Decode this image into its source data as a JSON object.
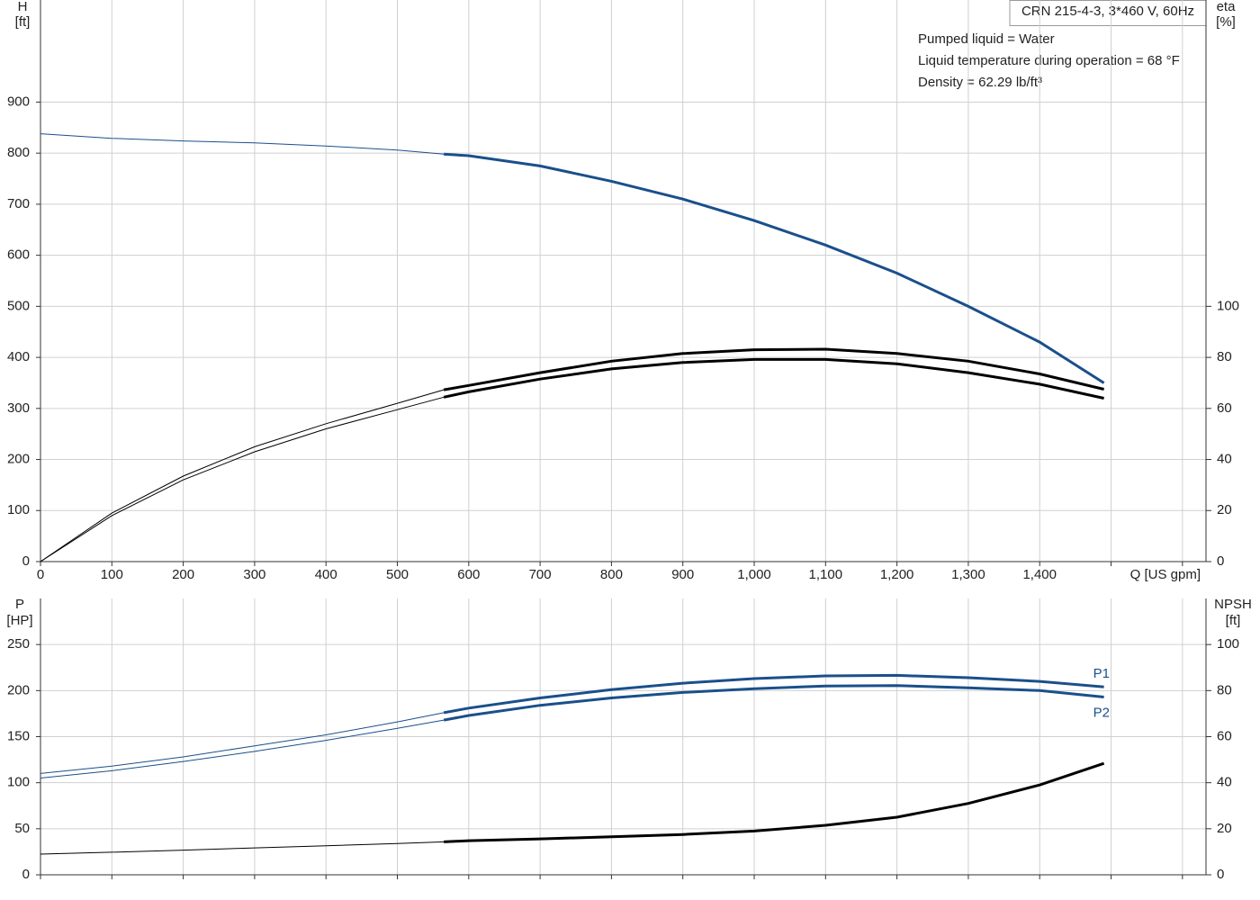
{
  "chart_data": [
    {
      "type": "line",
      "box_title": "CRN 215-4-3, 3*460 V, 60Hz",
      "annotations": [
        "Pumped liquid = Water",
        "Liquid temperature during operation = 68 °F",
        "Density = 62.29 lb/ft³"
      ],
      "y_label": [
        "H",
        "[ft]"
      ],
      "y2_label": [
        "eta",
        "[%]"
      ],
      "x_label": "Q [US gpm]",
      "xlim": [
        0,
        1633
      ],
      "xticks": [
        0,
        100,
        200,
        300,
        400,
        500,
        600,
        700,
        800,
        900,
        {
          "value": 1000,
          "label": "1,000"
        },
        {
          "value": 1100,
          "label": "1,100"
        },
        {
          "value": 1200,
          "label": "1,200"
        },
        {
          "value": 1300,
          "label": "1,300"
        },
        {
          "value": 1400,
          "label": "1,400"
        }
      ],
      "xgrid": [
        1500,
        1600
      ],
      "ylim": [
        0,
        1100
      ],
      "yticks": [
        0,
        100,
        200,
        300,
        400,
        500,
        600,
        700,
        800,
        900
      ],
      "y2lim": [
        0,
        220
      ],
      "y2ticks": [
        0,
        20,
        40,
        60,
        80,
        100
      ],
      "grid": true,
      "thick_from": 565,
      "x": [
        0,
        100,
        200,
        300,
        400,
        500,
        565,
        600,
        700,
        800,
        900,
        1000,
        1100,
        1200,
        1300,
        1400,
        1490
      ],
      "series": [
        {
          "color": "#1a4f8b",
          "values": [
            838,
            829,
            824,
            820,
            814,
            806,
            798,
            795,
            775,
            745,
            710,
            668,
            620,
            565,
            500,
            430,
            350
          ]
        },
        {
          "color": "#000000",
          "axis": "y2",
          "values": [
            0,
            19,
            33.5,
            45,
            54,
            62,
            67.3,
            69,
            74,
            78.5,
            81.5,
            83,
            83.2,
            81.5,
            78.5,
            73.5,
            67.5
          ]
        },
        {
          "color": "#000000",
          "axis": "y2",
          "values": [
            0,
            18,
            32,
            43,
            52,
            59.5,
            64.4,
            66.5,
            71.5,
            75.5,
            78,
            79.2,
            79.2,
            77.5,
            74,
            69.5,
            64
          ]
        }
      ]
    },
    {
      "type": "line",
      "y_label": [
        "P",
        "[HP]"
      ],
      "y2_label": [
        "NPSH",
        "[ft]"
      ],
      "xlim": [
        0,
        1633
      ],
      "xgrid": [
        0,
        100,
        200,
        300,
        400,
        500,
        600,
        700,
        800,
        900,
        1000,
        1100,
        1200,
        1300,
        1400,
        1500,
        1600
      ],
      "ylim": [
        0,
        300
      ],
      "yticks": [
        0,
        50,
        100,
        150,
        200,
        250
      ],
      "y2lim": [
        0,
        120
      ],
      "y2ticks": [
        0,
        20,
        40,
        60,
        80,
        100
      ],
      "grid": true,
      "thick_from": 565,
      "x": [
        0,
        100,
        200,
        300,
        400,
        500,
        565,
        600,
        700,
        800,
        900,
        1000,
        1100,
        1200,
        1300,
        1400,
        1490
      ],
      "series": [
        {
          "name": "P1",
          "color": "#1a4f8b",
          "values": [
            110,
            118,
            128,
            140,
            152,
            166,
            176,
            181,
            192,
            201,
            208,
            213,
            216,
            216.5,
            214,
            210,
            204
          ]
        },
        {
          "name": "P2",
          "color": "#1a4f8b",
          "values": [
            105,
            113,
            123,
            134,
            146,
            159,
            168,
            173,
            184,
            192,
            198,
            202,
            205,
            205.5,
            203,
            200,
            193
          ]
        },
        {
          "color": "#000000",
          "axis": "y2",
          "values": [
            9,
            9.8,
            10.7,
            11.7,
            12.6,
            13.6,
            14.3,
            14.8,
            15.6,
            16.5,
            17.5,
            19,
            21.5,
            25,
            31,
            39,
            48.4
          ]
        }
      ]
    }
  ]
}
